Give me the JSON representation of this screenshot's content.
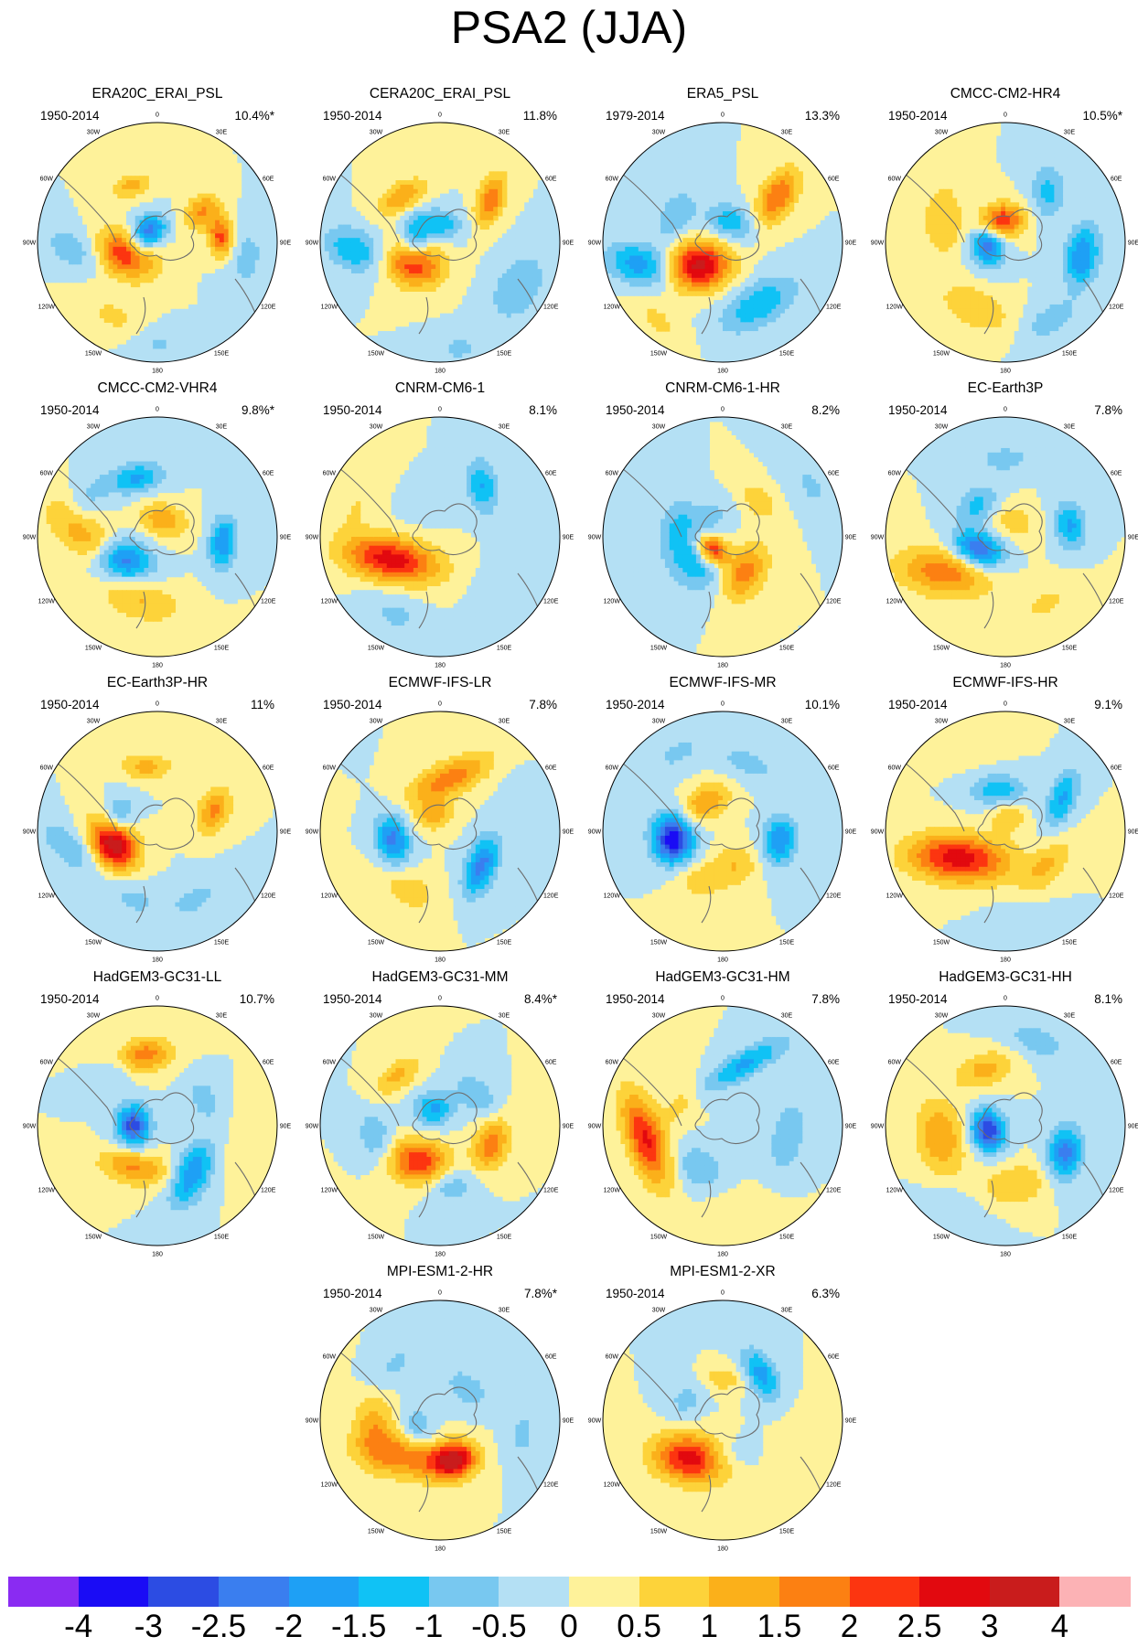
{
  "title": "PSA2 (JJA)",
  "lon_labels": [
    "0",
    "30E",
    "60E",
    "90E",
    "120E",
    "150E",
    "180",
    "150W",
    "120W",
    "90W",
    "60W",
    "30W"
  ],
  "panels": [
    {
      "name": "ERA20C_ERAI_PSL",
      "period": "1950-2014",
      "percent": "10.4%*",
      "blobs": [
        [
          -112,
          0.27,
          0.28,
          2.6,
          0.18,
          0.13,
          -45
        ],
        [
          -25,
          0.52,
          0.24,
          1.2,
          0.12,
          0.07,
          10
        ],
        [
          55,
          0.45,
          0.28,
          1.5,
          0.12,
          0.09,
          80
        ],
        [
          85,
          0.53,
          0.24,
          2.2,
          0.12,
          0.07,
          0
        ],
        [
          -80,
          0.12,
          0.16,
          -1.5,
          0.12,
          0.09,
          0
        ],
        [
          -20,
          0.12,
          0.16,
          -1.5,
          0.1,
          0.08,
          0
        ],
        [
          -95,
          0.7,
          0.3,
          -0.9,
          0.18,
          0.11,
          -60
        ],
        [
          100,
          0.75,
          0.35,
          -0.7,
          0.2,
          0.12,
          0
        ],
        [
          -150,
          0.72,
          0.4,
          0.6,
          0.2,
          0.12,
          0
        ],
        [
          180,
          0.85,
          0.3,
          -0.6,
          0.18,
          0.1,
          0
        ]
      ]
    },
    {
      "name": "CERA20C_ERAI_PSL",
      "period": "1950-2014",
      "percent": "11.8%",
      "blobs": [
        [
          -130,
          0.28,
          0.28,
          2.6,
          0.17,
          0.13,
          -40
        ],
        [
          -40,
          0.5,
          0.24,
          1.5,
          0.16,
          0.08,
          10
        ],
        [
          50,
          0.55,
          0.24,
          1.9,
          0.16,
          0.08,
          60
        ],
        [
          -85,
          0.2,
          0.18,
          -1.4,
          0.14,
          0.09,
          0
        ],
        [
          0,
          0.15,
          0.18,
          -1.3,
          0.14,
          0.09,
          0
        ],
        [
          -95,
          0.72,
          0.3,
          -1.5,
          0.18,
          0.12,
          -60
        ],
        [
          120,
          0.75,
          0.35,
          -1.0,
          0.22,
          0.14,
          0
        ],
        [
          170,
          0.9,
          0.2,
          -0.6,
          0.16,
          0.1,
          0
        ]
      ]
    },
    {
      "name": "ERA5_PSL",
      "period": "1979-2014",
      "percent": "13.3%",
      "blobs": [
        [
          -135,
          0.28,
          0.3,
          3.2,
          0.18,
          0.14,
          -50
        ],
        [
          50,
          0.6,
          0.25,
          2.0,
          0.18,
          0.1,
          70
        ],
        [
          -60,
          0.45,
          0.22,
          -1.0,
          0.16,
          0.1,
          0
        ],
        [
          20,
          0.18,
          0.18,
          -1.4,
          0.14,
          0.1,
          0
        ],
        [
          -105,
          0.72,
          0.3,
          -1.8,
          0.2,
          0.12,
          -60
        ],
        [
          150,
          0.6,
          0.35,
          -1.4,
          0.25,
          0.13,
          0
        ],
        [
          -140,
          0.85,
          0.25,
          0.6,
          0.2,
          0.1,
          0
        ]
      ]
    },
    {
      "name": "CMCC-CM2-HR4",
      "period": "1950-2014",
      "percent": "10.5%*",
      "blobs": [
        [
          -10,
          0.18,
          0.22,
          2.6,
          0.13,
          0.1,
          0
        ],
        [
          -100,
          0.15,
          0.2,
          -2.4,
          0.12,
          0.1,
          0
        ],
        [
          40,
          0.55,
          0.24,
          -1.2,
          0.16,
          0.1,
          50
        ],
        [
          100,
          0.65,
          0.28,
          -2.0,
          0.18,
          0.1,
          0
        ],
        [
          -70,
          0.55,
          0.3,
          1.0,
          0.22,
          0.12,
          -20
        ],
        [
          -155,
          0.6,
          0.3,
          1.0,
          0.22,
          0.12,
          0
        ],
        [
          150,
          0.75,
          0.3,
          -0.8,
          0.18,
          0.1,
          0
        ]
      ]
    },
    {
      "name": "CMCC-CM2-VHR4",
      "period": "1950-2014",
      "percent": "9.8%*",
      "blobs": [
        [
          -125,
          0.35,
          0.3,
          -2.6,
          0.17,
          0.12,
          -45
        ],
        [
          -20,
          0.52,
          0.24,
          -1.6,
          0.16,
          0.09,
          10
        ],
        [
          20,
          0.15,
          0.2,
          1.4,
          0.14,
          0.1,
          0
        ],
        [
          95,
          0.55,
          0.26,
          -2.0,
          0.15,
          0.08,
          0
        ],
        [
          -90,
          0.6,
          0.35,
          1.3,
          0.3,
          0.13,
          -50
        ],
        [
          -165,
          0.55,
          0.35,
          1.0,
          0.25,
          0.12,
          0
        ],
        [
          -60,
          0.65,
          0.3,
          -0.6,
          0.15,
          0.1,
          0
        ]
      ]
    },
    {
      "name": "CNRM-CM6-1",
      "period": "1950-2014",
      "percent": "8.1%",
      "blobs": [
        [
          -115,
          0.45,
          0.3,
          2.8,
          0.28,
          0.13,
          -55
        ],
        [
          40,
          0.55,
          0.24,
          -1.5,
          0.16,
          0.09,
          40
        ],
        [
          -70,
          0.75,
          0.35,
          0.5,
          0.2,
          0.12,
          0
        ],
        [
          -150,
          0.75,
          0.35,
          -0.6,
          0.2,
          0.13,
          0
        ],
        [
          130,
          0.65,
          0.3,
          -0.5,
          0.2,
          0.13,
          0
        ],
        [
          -20,
          0.3,
          0.2,
          -0.5,
          0.14,
          0.1,
          0
        ]
      ]
    },
    {
      "name": "CNRM-CM6-1-HR",
      "period": "1950-2014",
      "percent": "8.2%",
      "blobs": [
        [
          -140,
          0.14,
          0.18,
          3.0,
          0.1,
          0.08,
          0
        ],
        [
          -130,
          0.3,
          0.3,
          -1.5,
          0.2,
          0.16,
          0
        ],
        [
          150,
          0.35,
          0.3,
          1.8,
          0.18,
          0.12,
          -30
        ],
        [
          45,
          0.42,
          0.24,
          0.9,
          0.14,
          0.08,
          0
        ],
        [
          -70,
          0.4,
          0.3,
          -0.8,
          0.15,
          0.1,
          0
        ],
        [
          -30,
          0.2,
          0.2,
          -0.7,
          0.12,
          0.09,
          0
        ],
        [
          60,
          0.85,
          0.25,
          -0.6,
          0.2,
          0.1,
          0
        ]
      ]
    },
    {
      "name": "EC-Earth3P",
      "period": "1950-2014",
      "percent": "7.8%",
      "blobs": [
        [
          -115,
          0.25,
          0.28,
          -2.6,
          0.15,
          0.1,
          -45
        ],
        [
          -120,
          0.6,
          0.35,
          1.8,
          0.28,
          0.14,
          -50
        ],
        [
          0,
          0.65,
          0.25,
          -0.8,
          0.15,
          0.08,
          0
        ],
        [
          80,
          0.55,
          0.25,
          -1.6,
          0.14,
          0.09,
          0
        ],
        [
          30,
          0.15,
          0.2,
          0.8,
          0.14,
          0.1,
          0
        ],
        [
          -40,
          0.35,
          0.25,
          -1.2,
          0.14,
          0.1,
          0
        ],
        [
          150,
          0.65,
          0.3,
          0.6,
          0.2,
          0.1,
          0
        ]
      ]
    },
    {
      "name": "EC-Earth3P-HR",
      "period": "1950-2014",
      "percent": "11%",
      "blobs": [
        [
          -105,
          0.38,
          0.28,
          3.6,
          0.16,
          0.12,
          -20
        ],
        [
          -10,
          0.55,
          0.25,
          1.2,
          0.15,
          0.08,
          10
        ],
        [
          70,
          0.5,
          0.25,
          1.6,
          0.14,
          0.09,
          40
        ],
        [
          -70,
          0.35,
          0.2,
          -1.4,
          0.12,
          0.09,
          0
        ],
        [
          -100,
          0.75,
          0.3,
          -1.0,
          0.2,
          0.1,
          -40
        ],
        [
          150,
          0.65,
          0.35,
          -0.6,
          0.2,
          0.12,
          0
        ],
        [
          -160,
          0.6,
          0.35,
          -0.6,
          0.2,
          0.12,
          0
        ]
      ]
    },
    {
      "name": "ECMWF-IFS-LR",
      "period": "1950-2014",
      "percent": "7.8%",
      "blobs": [
        [
          10,
          0.45,
          0.26,
          1.8,
          0.26,
          0.1,
          -35
        ],
        [
          -100,
          0.4,
          0.3,
          -2.2,
          0.15,
          0.1,
          0
        ],
        [
          130,
          0.45,
          0.3,
          -2.2,
          0.18,
          0.09,
          -20
        ],
        [
          -20,
          0.15,
          0.2,
          1.2,
          0.12,
          0.09,
          0
        ],
        [
          -150,
          0.55,
          0.35,
          0.8,
          0.2,
          0.12,
          0
        ],
        [
          70,
          0.75,
          0.3,
          -0.4,
          0.15,
          0.1,
          0
        ]
      ]
    },
    {
      "name": "ECMWF-IFS-MR",
      "period": "1950-2014",
      "percent": "10.1%",
      "blobs": [
        [
          -100,
          0.42,
          0.3,
          -3.4,
          0.15,
          0.12,
          0
        ],
        [
          100,
          0.48,
          0.28,
          -2.0,
          0.14,
          0.1,
          0
        ],
        [
          -30,
          0.28,
          0.22,
          1.5,
          0.15,
          0.1,
          0
        ],
        [
          160,
          0.3,
          0.24,
          1.0,
          0.14,
          0.12,
          0
        ],
        [
          -150,
          0.45,
          0.3,
          0.8,
          0.16,
          0.12,
          0
        ],
        [
          20,
          0.6,
          0.3,
          -0.7,
          0.2,
          0.1,
          0
        ],
        [
          -30,
          0.75,
          0.25,
          -0.6,
          0.2,
          0.1,
          0
        ]
      ]
    },
    {
      "name": "ECMWF-IFS-HR",
      "period": "1950-2014",
      "percent": "9.1%",
      "blobs": [
        [
          -120,
          0.45,
          0.35,
          2.8,
          0.3,
          0.14,
          -55
        ],
        [
          -10,
          0.35,
          0.25,
          -1.4,
          0.16,
          0.09,
          10
        ],
        [
          60,
          0.55,
          0.25,
          -1.6,
          0.18,
          0.08,
          50
        ],
        [
          130,
          0.45,
          0.3,
          1.0,
          0.2,
          0.1,
          0
        ],
        [
          10,
          0.12,
          0.2,
          1.0,
          0.1,
          0.08,
          0
        ],
        [
          -20,
          0.8,
          0.3,
          0.4,
          0.2,
          0.12,
          0
        ],
        [
          170,
          0.75,
          0.3,
          -0.5,
          0.18,
          0.1,
          0
        ]
      ]
    },
    {
      "name": "HadGEM3-GC31-LL",
      "period": "1950-2014",
      "percent": "10.7%",
      "blobs": [
        [
          -90,
          0.2,
          0.18,
          -2.8,
          0.12,
          0.1,
          0
        ],
        [
          -10,
          0.6,
          0.26,
          1.8,
          0.16,
          0.1,
          0
        ],
        [
          145,
          0.5,
          0.3,
          -2.0,
          0.2,
          0.1,
          -30
        ],
        [
          -150,
          0.4,
          0.3,
          1.6,
          0.2,
          0.1,
          -20
        ],
        [
          60,
          0.45,
          0.25,
          -0.8,
          0.14,
          0.09,
          0
        ],
        [
          -40,
          0.55,
          0.25,
          -0.5,
          0.14,
          0.09,
          0
        ],
        [
          100,
          0.75,
          0.3,
          0.5,
          0.2,
          0.1,
          0
        ]
      ]
    },
    {
      "name": "HadGEM3-GC31-MM",
      "period": "1950-2014",
      "percent": "8.4%*",
      "blobs": [
        [
          -150,
          0.35,
          0.3,
          2.4,
          0.18,
          0.13,
          -20
        ],
        [
          -20,
          0.15,
          0.2,
          -1.6,
          0.12,
          0.1,
          0
        ],
        [
          -40,
          0.55,
          0.25,
          1.2,
          0.15,
          0.08,
          0
        ],
        [
          110,
          0.45,
          0.28,
          1.8,
          0.16,
          0.1,
          0
        ],
        [
          50,
          0.4,
          0.25,
          -1.0,
          0.15,
          0.09,
          0
        ],
        [
          -100,
          0.55,
          0.28,
          -1.0,
          0.15,
          0.1,
          0
        ],
        [
          170,
          0.5,
          0.3,
          -1.0,
          0.15,
          0.1,
          0
        ]
      ]
    },
    {
      "name": "HadGEM3-GC31-HM",
      "period": "1950-2014",
      "percent": "7.8%",
      "blobs": [
        [
          -100,
          0.65,
          0.3,
          2.6,
          0.28,
          0.11,
          -10
        ],
        [
          20,
          0.55,
          0.25,
          -1.6,
          0.28,
          0.08,
          -50
        ],
        [
          -150,
          0.4,
          0.3,
          -1.0,
          0.15,
          0.12,
          0
        ],
        [
          100,
          0.55,
          0.3,
          -1.0,
          0.22,
          0.1,
          0
        ],
        [
          -60,
          0.4,
          0.25,
          0.7,
          0.15,
          0.09,
          0
        ],
        [
          170,
          0.7,
          0.3,
          0.5,
          0.2,
          0.1,
          0
        ]
      ]
    },
    {
      "name": "HadGEM3-GC31-HH",
      "period": "1950-2014",
      "percent": "8.1%",
      "blobs": [
        [
          -105,
          0.15,
          0.18,
          -3.0,
          0.12,
          0.1,
          0
        ],
        [
          115,
          0.55,
          0.28,
          -2.2,
          0.16,
          0.1,
          -20
        ],
        [
          -100,
          0.55,
          0.35,
          1.5,
          0.22,
          0.14,
          0
        ],
        [
          -20,
          0.5,
          0.25,
          1.2,
          0.18,
          0.1,
          0
        ],
        [
          170,
          0.5,
          0.3,
          1.0,
          0.2,
          0.12,
          0
        ],
        [
          20,
          0.75,
          0.25,
          -0.8,
          0.2,
          0.1,
          0
        ],
        [
          -150,
          0.8,
          0.3,
          -0.5,
          0.2,
          0.1,
          0
        ]
      ]
    },
    {
      "name": "MPI-ESM1-2-HR",
      "period": "1950-2014",
      "percent": "7.8%*",
      "blobs": [
        [
          160,
          0.35,
          0.24,
          2.8,
          0.13,
          0.1,
          0
        ],
        [
          -140,
          0.4,
          0.3,
          1.8,
          0.3,
          0.13,
          -30
        ],
        [
          -95,
          0.55,
          0.3,
          1.2,
          0.2,
          0.12,
          0
        ],
        [
          -110,
          0.2,
          0.2,
          -1.0,
          0.12,
          0.1,
          0
        ],
        [
          40,
          0.35,
          0.25,
          -0.8,
          0.16,
          0.1,
          0
        ],
        [
          -40,
          0.6,
          0.3,
          -0.6,
          0.2,
          0.1,
          0
        ],
        [
          100,
          0.7,
          0.3,
          -0.6,
          0.2,
          0.1,
          0
        ]
      ]
    },
    {
      "name": "MPI-ESM1-2-XR",
      "period": "1950-2014",
      "percent": "6.3%",
      "blobs": [
        [
          -140,
          0.42,
          0.3,
          2.8,
          0.22,
          0.14,
          -30
        ],
        [
          40,
          0.5,
          0.26,
          -1.8,
          0.16,
          0.09,
          20
        ],
        [
          0,
          0.35,
          0.2,
          0.8,
          0.14,
          0.08,
          0
        ],
        [
          -60,
          0.35,
          0.25,
          -0.7,
          0.14,
          0.1,
          0
        ],
        [
          110,
          0.6,
          0.3,
          0.5,
          0.2,
          0.1,
          0
        ],
        [
          170,
          0.3,
          0.25,
          -0.6,
          0.15,
          0.1,
          0
        ]
      ]
    }
  ],
  "colorbar": {
    "colors": [
      "#8a2bf2",
      "#1a0cf5",
      "#2c4ce3",
      "#3a7eef",
      "#1ea0f5",
      "#10c2f5",
      "#78c8f0",
      "#b4e0f4",
      "#fef29a",
      "#fdd33a",
      "#fbb01a",
      "#fc8012",
      "#fc3510",
      "#e2090f",
      "#c91c1c",
      "#fcb2b5"
    ],
    "labels": [
      "-4",
      "-3",
      "-2.5",
      "-2",
      "-1.5",
      "-1",
      "-0.5",
      "0",
      "0.5",
      "1",
      "1.5",
      "2",
      "2.5",
      "3",
      "4"
    ],
    "levels": [
      -4,
      -3,
      -2.5,
      -2,
      -1.5,
      -1,
      -0.5,
      0,
      0.5,
      1,
      1.5,
      2,
      2.5,
      3,
      4
    ]
  }
}
